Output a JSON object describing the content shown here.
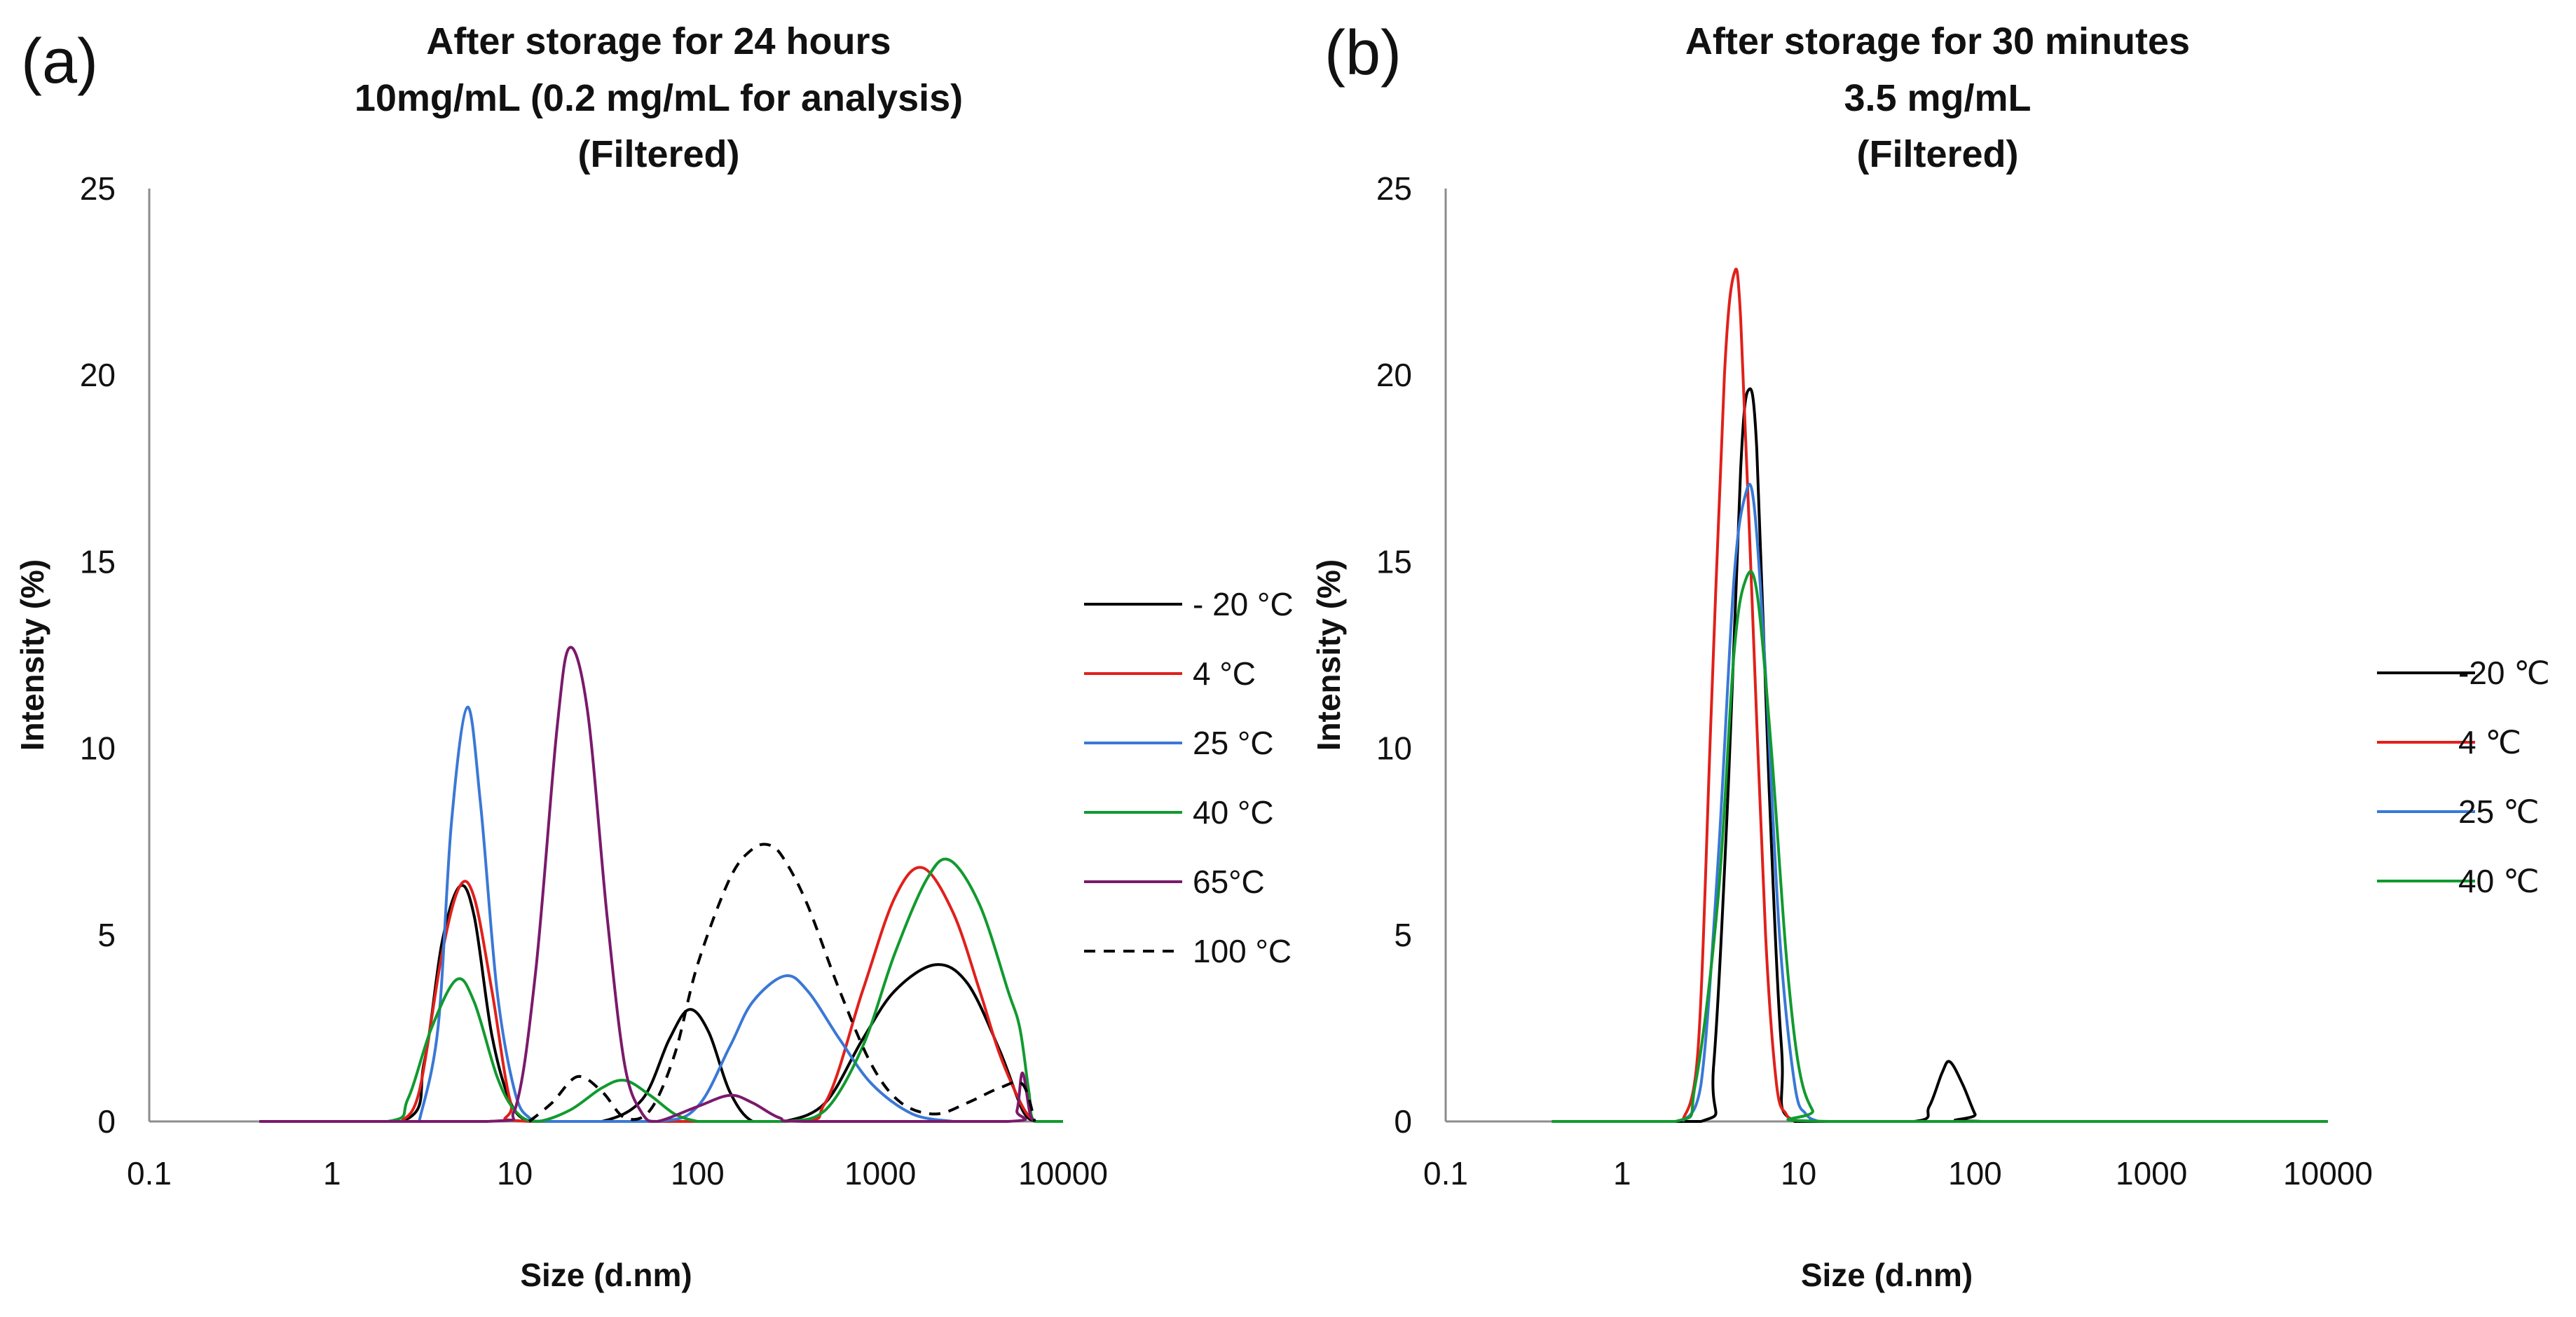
{
  "chart_data": [
    {
      "panel_label": "(a)",
      "type": "line",
      "title": [
        "After storage for 24 hours",
        "10mg/mL (0.2 mg/mL for analysis)",
        "(Filtered)"
      ],
      "xlabel": "Size (d.nm)",
      "ylabel": "Intensity (%)",
      "xscale": "log",
      "xlim": [
        0.1,
        10000
      ],
      "ylim": [
        0,
        25
      ],
      "xticks": [
        0.1,
        1,
        10,
        100,
        1000,
        10000
      ],
      "xtick_labels": [
        "0.1",
        "1",
        "10",
        "100",
        "1000",
        "10000"
      ],
      "yticks": [
        0,
        5,
        10,
        15,
        20,
        25
      ],
      "ytick_labels": [
        "0",
        "5",
        "10",
        "15",
        "20",
        "25"
      ],
      "legend_position": "right",
      "series": [
        {
          "name": "- 20 °C",
          "color": "#000000",
          "dash": false,
          "x": [
            0.4,
            2.4,
            3.2,
            4.0,
            5.0,
            6.0,
            7.5,
            9.5,
            12,
            16,
            30,
            50,
            70,
            90,
            115,
            150,
            200,
            300,
            500,
            800,
            1200,
            2000,
            3000,
            4500,
            6000,
            7000
          ],
          "y": [
            0,
            0,
            1.6,
            4.8,
            6.3,
            5.5,
            2.3,
            0.5,
            0,
            0,
            0,
            0.6,
            2.2,
            3.0,
            2.4,
            0.8,
            0,
            0,
            0.5,
            2.2,
            3.5,
            4.2,
            3.7,
            1.9,
            0.3,
            0
          ]
        },
        {
          "name": "4 °C",
          "color": "#e0201b",
          "dash": false,
          "x": [
            2.4,
            3.0,
            4.0,
            5.0,
            6.0,
            7.5,
            9.5,
            12,
            300,
            500,
            800,
            1200,
            1700,
            2500,
            3500,
            4500,
            6000,
            7000
          ],
          "y": [
            0,
            0.8,
            4.5,
            6.3,
            6.0,
            3.5,
            0.5,
            0,
            0,
            0.5,
            3.5,
            6.0,
            6.8,
            5.6,
            3.5,
            1.8,
            0.4,
            0
          ]
        },
        {
          "name": "25 °C",
          "color": "#3a78d6",
          "dash": false,
          "x": [
            3.0,
            3.8,
            4.5,
            5.5,
            6.5,
            8.0,
            10,
            12,
            15,
            60,
            100,
            150,
            200,
            300,
            400,
            600,
            900,
            1500,
            2500
          ],
          "y": [
            0,
            2.5,
            8.0,
            11.1,
            8.5,
            3.5,
            0.8,
            0.1,
            0,
            0,
            0.4,
            2.0,
            3.2,
            3.9,
            3.5,
            2.2,
            1.0,
            0.2,
            0
          ]
        },
        {
          "name": "40 °C",
          "color": "#119a2e",
          "dash": false,
          "x": [
            0.4,
            2.0,
            2.6,
            3.5,
            4.8,
            6.0,
            8.0,
            10,
            13,
            20,
            30,
            40,
            55,
            75,
            100,
            120,
            300,
            500,
            800,
            1200,
            1800,
            2400,
            3500,
            5000,
            5800,
            6500,
            7000,
            10000
          ],
          "y": [
            0,
            0,
            0.6,
            2.5,
            3.8,
            3.2,
            1.2,
            0.3,
            0,
            0.3,
            0.9,
            1.1,
            0.7,
            0.2,
            0,
            0,
            0,
            0.3,
            2.0,
            4.5,
            6.5,
            7.0,
            5.8,
            3.5,
            2.5,
            0.8,
            0,
            0
          ]
        },
        {
          "name": "65°C",
          "color": "#7a1a6b",
          "dash": false,
          "x": [
            0.4,
            7,
            10,
            13,
            17,
            20,
            25,
            32,
            40,
            50,
            60,
            100,
            150,
            200,
            280,
            400,
            5000,
            5600,
            6000,
            6600,
            7000
          ],
          "y": [
            0,
            0,
            0.3,
            4.0,
            10.5,
            12.7,
            11.0,
            5.5,
            1.5,
            0.2,
            0,
            0.4,
            0.7,
            0.5,
            0.1,
            0,
            0,
            0.3,
            1.3,
            0.2,
            0
          ]
        },
        {
          "name": "100 °C",
          "color": "#000000",
          "dash": true,
          "x": [
            12,
            16,
            22,
            30,
            40,
            55,
            75,
            100,
            150,
            200,
            250,
            300,
            400,
            600,
            900,
            1300,
            2000,
            3000,
            4500,
            6000,
            7000
          ],
          "y": [
            0,
            0.5,
            1.2,
            0.8,
            0.1,
            0.3,
            1.8,
            4.2,
            6.5,
            7.3,
            7.4,
            7.0,
            5.8,
            3.5,
            1.5,
            0.5,
            0.2,
            0.5,
            0.9,
            1.0,
            0
          ]
        }
      ]
    },
    {
      "panel_label": "(b)",
      "type": "line",
      "title": [
        "After storage for 30 minutes",
        "3.5 mg/mL",
        "(Filtered)"
      ],
      "xlabel": "Size (d.nm)",
      "ylabel": "Intensity (%)",
      "xscale": "log",
      "xlim": [
        0.1,
        10000
      ],
      "ylim": [
        0,
        25
      ],
      "xticks": [
        0.1,
        1,
        10,
        100,
        1000,
        10000
      ],
      "xtick_labels": [
        "0.1",
        "1",
        "10",
        "100",
        "1000",
        "10000"
      ],
      "yticks": [
        0,
        5,
        10,
        15,
        20,
        25
      ],
      "ytick_labels": [
        "0",
        "5",
        "10",
        "15",
        "20",
        "25"
      ],
      "legend_position": "right",
      "series": [
        {
          "name": "-20 ℃",
          "color": "#000000",
          "dash": false,
          "x": [
            0.4,
            2.8,
            3.3,
            4.0,
            4.7,
            5.2,
            5.8,
            6.8,
            8.0,
            9.5,
            45,
            55,
            65,
            72,
            85,
            100,
            110,
            10000
          ],
          "y": [
            0,
            0,
            1.5,
            9.0,
            17.5,
            19.6,
            18.0,
            9.0,
            2.0,
            0,
            0,
            0.4,
            1.3,
            1.6,
            1.0,
            0.2,
            0,
            0
          ]
        },
        {
          "name": "4 ℃",
          "color": "#e0201b",
          "dash": false,
          "x": [
            2.2,
            2.7,
            3.2,
            3.8,
            4.3,
            4.7,
            5.5,
            6.5,
            7.5,
            8.5,
            9.5
          ],
          "y": [
            0,
            2.0,
            11.0,
            20.0,
            22.7,
            21.5,
            13.5,
            5.0,
            1.0,
            0.2,
            0
          ]
        },
        {
          "name": "25 ℃",
          "color": "#3a78d6",
          "dash": false,
          "x": [
            2.2,
            2.8,
            3.5,
            4.3,
            5.0,
            5.6,
            6.5,
            7.8,
            9.5,
            11,
            13
          ],
          "y": [
            0,
            1.0,
            7.0,
            14.5,
            16.8,
            16.5,
            12.0,
            5.0,
            1.0,
            0.2,
            0
          ]
        },
        {
          "name": "40 ℃",
          "color": "#119a2e",
          "dash": false,
          "x": [
            0.4,
            2.0,
            2.6,
            3.5,
            4.3,
            5.0,
            5.8,
            7.0,
            8.5,
            10,
            12,
            15,
            10000
          ],
          "y": [
            0,
            0,
            1.0,
            6.0,
            12.5,
            14.5,
            14.2,
            10.0,
            4.5,
            1.5,
            0.3,
            0,
            0
          ]
        }
      ]
    }
  ]
}
